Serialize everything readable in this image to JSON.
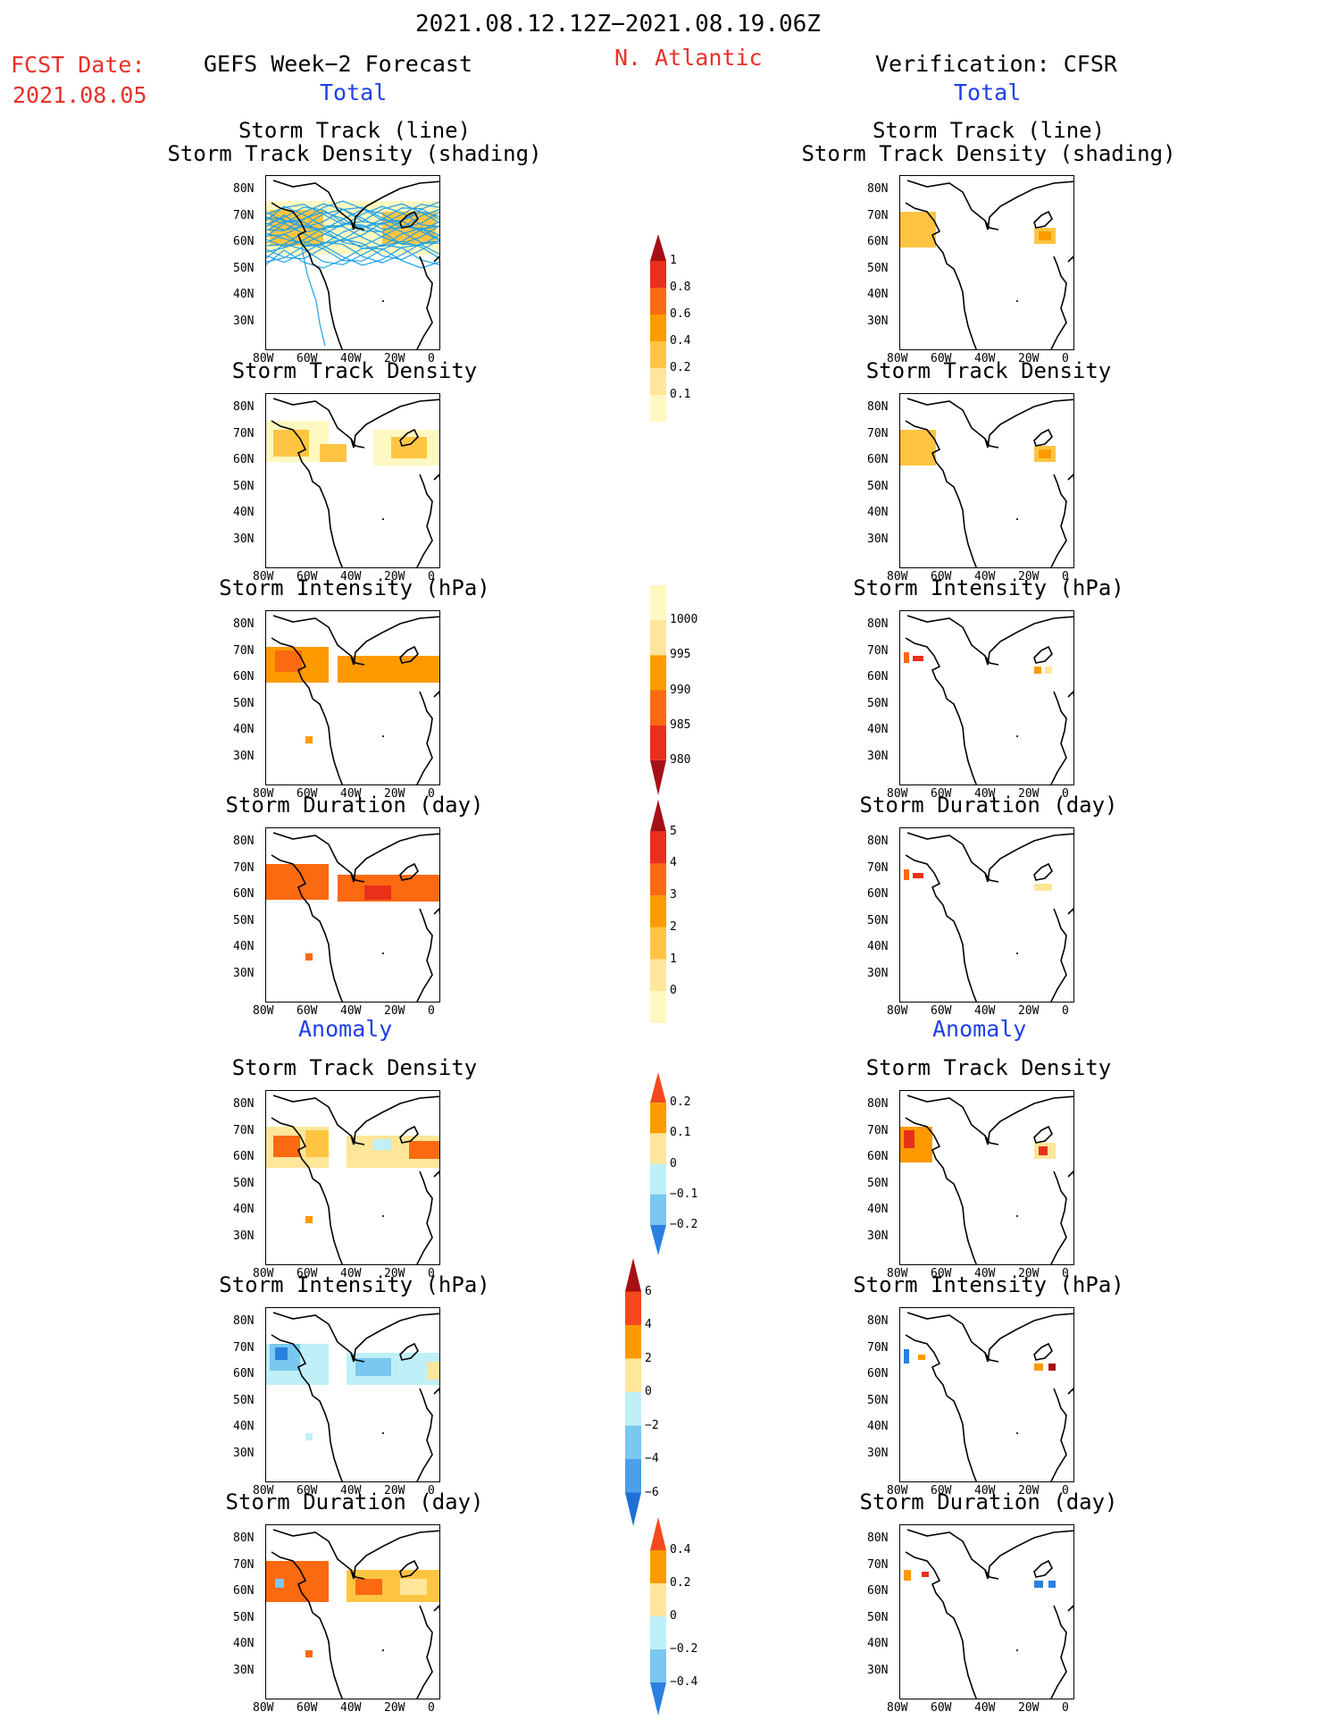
{
  "header": {
    "date_range": "2021.08.12.12Z−2021.08.19.06Z",
    "region": "N. Atlantic",
    "fcst_label": "FCST Date:",
    "fcst_date": "2021.08.05",
    "left_title": "GEFS Week−2 Forecast",
    "right_title": "Verification: CFSR",
    "total_label": "Total",
    "anomaly_label": "Anomaly"
  },
  "panel_titles": {
    "track_line": "Storm Track (line)",
    "track_shading": "Storm Track Density (shading)",
    "density": "Storm Track Density",
    "intensity": "Storm Intensity (hPa)",
    "duration": "Storm Duration (day)"
  },
  "axes": {
    "lat_ticks": [
      "80N",
      "70N",
      "60N",
      "50N",
      "40N",
      "30N"
    ],
    "lon_ticks": [
      "80W",
      "60W",
      "40W",
      "20W",
      "0"
    ]
  },
  "colorbars": {
    "density_total": {
      "labels": [
        "1",
        "0.8",
        "0.6",
        "0.4",
        "0.2",
        "0.1"
      ],
      "colors": [
        "#a50f15",
        "#e8301b",
        "#fb6a10",
        "#fe9a00",
        "#ffc542",
        "#ffe699",
        "#fff8c0"
      ]
    },
    "intensity_total": {
      "labels": [
        "1000",
        "995",
        "990",
        "985",
        "980"
      ],
      "colors": [
        "#fff8c0",
        "#ffe699",
        "#fe9a00",
        "#fb6a10",
        "#e8301b",
        "#a50f15"
      ]
    },
    "duration_total": {
      "labels": [
        "5",
        "4",
        "3",
        "2",
        "1",
        "0"
      ],
      "colors": [
        "#a50f15",
        "#e8301b",
        "#fb6a10",
        "#fe9a00",
        "#ffc542",
        "#ffe699",
        "#fff8c0"
      ]
    },
    "density_anom": {
      "labels": [
        "0.2",
        "0.1",
        "0",
        "−0.1",
        "−0.2"
      ],
      "colors": [
        "#f4491c",
        "#fe9a00",
        "#ffe699",
        "#bff0f8",
        "#78c8f0",
        "#2a80e0"
      ]
    },
    "intensity_anom": {
      "labels": [
        "6",
        "4",
        "2",
        "0",
        "−2",
        "−4",
        "−6"
      ],
      "colors": [
        "#a50f15",
        "#f4491c",
        "#fe9a00",
        "#ffe699",
        "#bff0f8",
        "#78c8f0",
        "#4aa0ea",
        "#1f6fd6"
      ]
    },
    "duration_anom": {
      "labels": [
        "0.4",
        "0.2",
        "0",
        "−0.2",
        "−0.4"
      ],
      "colors": [
        "#f4491c",
        "#fe9a00",
        "#ffe699",
        "#bff0f8",
        "#78c8f0",
        "#2a80e0"
      ]
    }
  },
  "colors": {
    "red_text": "#e8302a",
    "blue_text": "#1f3fe8",
    "track_line": "#1fa0e8"
  }
}
